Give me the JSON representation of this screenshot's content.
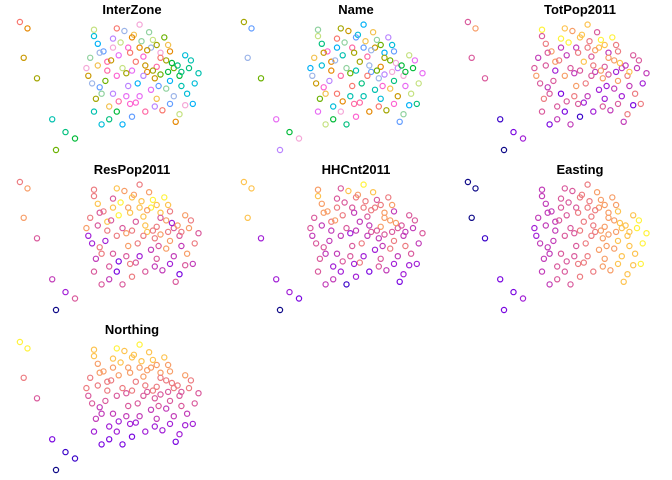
{
  "chart_data": {
    "type": "scatter",
    "description_of_marks": "open circles; each panel shows the same point locations colored by the panel variable",
    "x_range": [
      0,
      100
    ],
    "y_range": [
      0,
      100
    ],
    "panels": [
      {
        "title": "InterZone",
        "palette": "categorical"
      },
      {
        "title": "Name",
        "palette": "categorical"
      },
      {
        "title": "TotPop2011",
        "palette": "sequential"
      },
      {
        "title": "ResPop2011",
        "palette": "sequential"
      },
      {
        "title": "HHCnt2011",
        "palette": "sequential"
      },
      {
        "title": "Easting",
        "palette": "sequential"
      },
      {
        "title": "Northing",
        "palette": "sequential"
      }
    ],
    "categorical_colors": [
      "#F8766D",
      "#E58700",
      "#C99800",
      "#A3A500",
      "#6BB100",
      "#00BA38",
      "#00BF7D",
      "#00C0AF",
      "#00BCD8",
      "#00B0F6",
      "#619CFF",
      "#B983FF",
      "#E76BF3",
      "#FD61D1",
      "#FF67A4",
      "#F2C14E",
      "#8FD19E",
      "#9AB3E8",
      "#F4A6D7",
      "#C4E17F"
    ],
    "sequential_colors": [
      "#0D0887",
      "#3B04C9",
      "#7A06E0",
      "#A11FD6",
      "#C13CB8",
      "#D95A9C",
      "#EC7B80",
      "#F79D67",
      "#FDC34F",
      "#FFF23B"
    ],
    "points": [
      {
        "x": 1,
        "y": 100
      },
      {
        "x": 5,
        "y": 95
      },
      {
        "x": 3,
        "y": 72
      },
      {
        "x": 10,
        "y": 56
      },
      {
        "x": 20,
        "y": 0
      },
      {
        "x": 30,
        "y": 9
      },
      {
        "x": 25,
        "y": 14
      },
      {
        "x": 18,
        "y": 24
      },
      {
        "x": 40,
        "y": 89
      },
      {
        "x": 42,
        "y": 83
      },
      {
        "x": 45,
        "y": 77
      },
      {
        "x": 50,
        "y": 87
      },
      {
        "x": 53,
        "y": 74
      },
      {
        "x": 58,
        "y": 80
      },
      {
        "x": 47,
        "y": 69
      },
      {
        "x": 61,
        "y": 90
      },
      {
        "x": 65,
        "y": 85
      },
      {
        "x": 70,
        "y": 80
      },
      {
        "x": 75,
        "y": 76
      },
      {
        "x": 55,
        "y": 64
      },
      {
        "x": 62,
        "y": 69
      },
      {
        "x": 68,
        "y": 61
      },
      {
        "x": 72,
        "y": 56
      },
      {
        "x": 78,
        "y": 70
      },
      {
        "x": 82,
        "y": 64
      },
      {
        "x": 85,
        "y": 58
      },
      {
        "x": 90,
        "y": 64
      },
      {
        "x": 95,
        "y": 60
      },
      {
        "x": 88,
        "y": 74
      },
      {
        "x": 63,
        "y": 52
      },
      {
        "x": 43,
        "y": 49
      },
      {
        "x": 50,
        "y": 44
      },
      {
        "x": 57,
        "y": 42
      },
      {
        "x": 62,
        "y": 37
      },
      {
        "x": 67,
        "y": 30
      },
      {
        "x": 73,
        "y": 40
      },
      {
        "x": 78,
        "y": 48
      },
      {
        "x": 82,
        "y": 42
      },
      {
        "x": 88,
        "y": 35
      },
      {
        "x": 85,
        "y": 28
      },
      {
        "x": 76,
        "y": 31
      },
      {
        "x": 83,
        "y": 22
      },
      {
        "x": 37,
        "y": 58
      },
      {
        "x": 41,
        "y": 40
      },
      {
        "x": 46,
        "y": 54
      },
      {
        "x": 52,
        "y": 30
      },
      {
        "x": 48,
        "y": 24
      },
      {
        "x": 40,
        "y": 30
      },
      {
        "x": 44,
        "y": 20
      },
      {
        "x": 55,
        "y": 20
      },
      {
        "x": 60,
        "y": 26
      },
      {
        "x": 58,
        "y": 50
      },
      {
        "x": 70,
        "y": 47
      },
      {
        "x": 66,
        "y": 73
      },
      {
        "x": 73,
        "y": 65
      },
      {
        "x": 79,
        "y": 82
      },
      {
        "x": 69,
        "y": 92
      },
      {
        "x": 56,
        "y": 93
      },
      {
        "x": 64,
        "y": 98
      },
      {
        "x": 71,
        "y": 86
      },
      {
        "x": 75,
        "y": 72
      },
      {
        "x": 80,
        "y": 77
      },
      {
        "x": 68,
        "y": 78
      },
      {
        "x": 73,
        "y": 82
      },
      {
        "x": 77,
        "y": 88
      },
      {
        "x": 81,
        "y": 68
      },
      {
        "x": 86,
        "y": 61
      },
      {
        "x": 91,
        "y": 70
      },
      {
        "x": 93,
        "y": 52
      },
      {
        "x": 80,
        "y": 54
      },
      {
        "x": 74,
        "y": 50
      },
      {
        "x": 66,
        "y": 58
      },
      {
        "x": 60,
        "y": 62
      },
      {
        "x": 52,
        "y": 58
      },
      {
        "x": 47,
        "y": 62
      },
      {
        "x": 42,
        "y": 66
      },
      {
        "x": 38,
        "y": 72
      },
      {
        "x": 43,
        "y": 76
      },
      {
        "x": 50,
        "y": 80
      },
      {
        "x": 54,
        "y": 84
      },
      {
        "x": 59,
        "y": 76
      },
      {
        "x": 64,
        "y": 80
      },
      {
        "x": 67,
        "y": 66
      },
      {
        "x": 71,
        "y": 62
      },
      {
        "x": 75,
        "y": 59
      },
      {
        "x": 79,
        "y": 61
      },
      {
        "x": 84,
        "y": 66
      },
      {
        "x": 86,
        "y": 50
      },
      {
        "x": 89,
        "y": 44
      },
      {
        "x": 92,
        "y": 36
      },
      {
        "x": 80,
        "y": 36
      },
      {
        "x": 72,
        "y": 34
      },
      {
        "x": 64,
        "y": 42
      },
      {
        "x": 59,
        "y": 36
      },
      {
        "x": 53,
        "y": 38
      },
      {
        "x": 48,
        "y": 34
      },
      {
        "x": 44,
        "y": 44
      },
      {
        "x": 39,
        "y": 52
      },
      {
        "x": 36,
        "y": 64
      },
      {
        "x": 40,
        "y": 94
      },
      {
        "x": 52,
        "y": 95
      },
      {
        "x": 60,
        "y": 88
      },
      {
        "x": 49,
        "y": 70
      },
      {
        "x": 57,
        "y": 60
      }
    ]
  }
}
